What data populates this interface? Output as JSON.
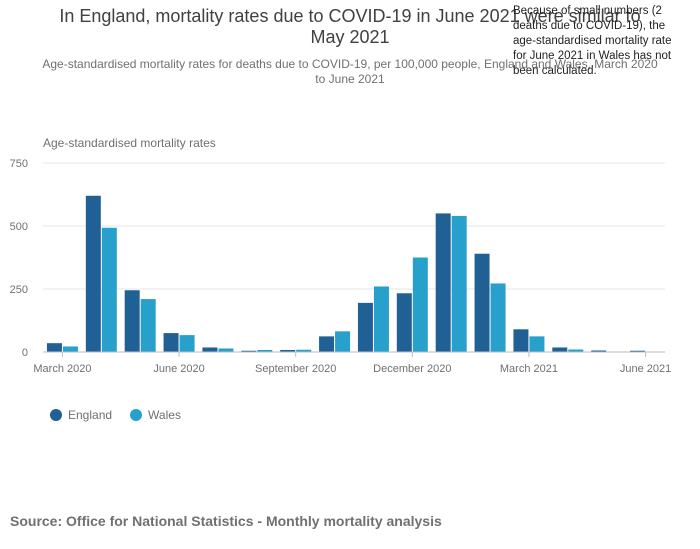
{
  "title": "In England, mortality rates due to COVID-19 in June 2021 were similar to May 2021",
  "subtitle": "Age-standardised mortality rates for deaths due to COVID-19, per 100,000 people, England and Wales, March 2020 to June 2021",
  "annotation": "Because of small numbers (2 deaths due to COVID-19), the age-standardised mortality rate for June 2021 in Wales has not been calculated.",
  "source": "Source: Office for National Statistics - Monthly mortality analysis",
  "colors": {
    "england": "#206095",
    "wales": "#27a0cc",
    "grid": "#e6e6e6",
    "axis": "#bebebe"
  },
  "chart_data": {
    "type": "bar",
    "ylabel": "Age-standardised mortality rates",
    "ylim": [
      0,
      750
    ],
    "yticks": [
      0,
      250,
      500,
      750
    ],
    "categories": [
      "March 2020",
      "April 2020",
      "May 2020",
      "June 2020",
      "July 2020",
      "August 2020",
      "September 2020",
      "October 2020",
      "November 2020",
      "December 2020",
      "January 2021",
      "February 2021",
      "March 2021",
      "April 2021",
      "May 2021",
      "June 2021"
    ],
    "xtick_labels": [
      {
        "index": 0,
        "label": "March 2020"
      },
      {
        "index": 3,
        "label": "June 2020"
      },
      {
        "index": 6,
        "label": "September 2020"
      },
      {
        "index": 9,
        "label": "December 2020"
      },
      {
        "index": 12,
        "label": "March 2021"
      },
      {
        "index": 15,
        "label": "June 2021"
      }
    ],
    "series": [
      {
        "name": "England",
        "values": [
          35,
          620,
          245,
          75,
          18,
          5,
          8,
          62,
          195,
          233,
          550,
          390,
          90,
          18,
          6,
          5
        ]
      },
      {
        "name": "Wales",
        "values": [
          22,
          493,
          210,
          67,
          14,
          8,
          9,
          82,
          260,
          375,
          540,
          272,
          62,
          10,
          2,
          null
        ]
      }
    ],
    "grid": true,
    "legend_position": "bottom-left"
  }
}
